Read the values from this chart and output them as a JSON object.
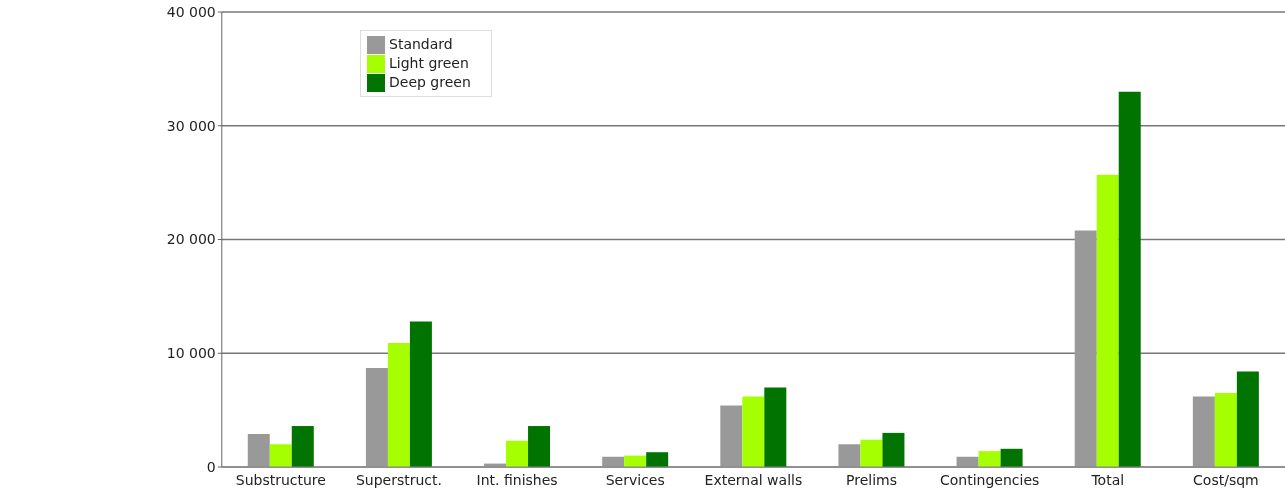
{
  "chart_data": {
    "type": "bar",
    "categories": [
      "Substructure",
      "Superstruct.",
      "Int. finishes",
      "Services",
      "External walls",
      "Prelims",
      "Contingencies",
      "Total",
      "Cost/sqm"
    ],
    "series": [
      {
        "name": "Standard",
        "color": "#999999",
        "values": [
          2900,
          8700,
          300,
          900,
          5400,
          2000,
          900,
          20800,
          6200
        ]
      },
      {
        "name": "Light green",
        "color": "#a6ff00",
        "values": [
          2000,
          10900,
          2300,
          1000,
          6200,
          2400,
          1400,
          25700,
          6500
        ]
      },
      {
        "name": "Deep green",
        "color": "#007300",
        "values": [
          3600,
          12800,
          3600,
          1300,
          7000,
          3000,
          1600,
          33000,
          8400
        ]
      }
    ],
    "ylim": [
      0,
      40000
    ],
    "yticks": [
      {
        "value": 0,
        "label": "0"
      },
      {
        "value": 10000,
        "label": "10 000"
      },
      {
        "value": 20000,
        "label": "20 000"
      },
      {
        "value": 30000,
        "label": "30 000"
      },
      {
        "value": 40000,
        "label": "40 000"
      }
    ],
    "grid": "y",
    "legend": "top left"
  }
}
